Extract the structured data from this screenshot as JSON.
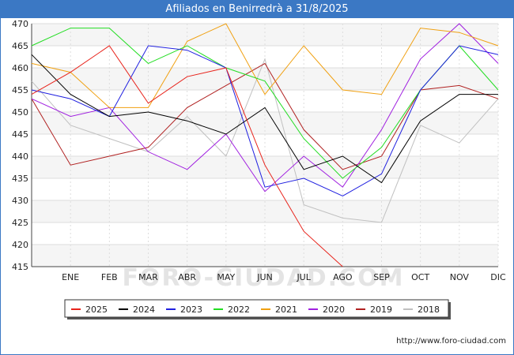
{
  "title": "Afiliados en Benirredrà a 31/8/2025",
  "source": "http://www.foro-ciudad.com",
  "watermark": "FORO-CIUDAD.COM",
  "chart_data": {
    "type": "line",
    "title": "Afiliados en Benirredrà a 31/8/2025",
    "categories": [
      "",
      "ENE",
      "FEB",
      "MAR",
      "ABR",
      "MAY",
      "JUN",
      "JUL",
      "AGO",
      "SEP",
      "OCT",
      "NOV",
      "DIC"
    ],
    "ylim": [
      415,
      470
    ],
    "yticks": [
      415,
      420,
      425,
      430,
      435,
      440,
      445,
      450,
      455,
      460,
      465,
      470
    ],
    "grid": true,
    "legend_position": "bottom",
    "series": [
      {
        "name": "2025",
        "color": "#e8231b",
        "values": [
          454,
          459,
          465,
          452,
          458,
          460,
          438,
          423,
          415,
          null,
          null,
          null,
          null
        ]
      },
      {
        "name": "2024",
        "color": "#000000",
        "values": [
          463,
          454,
          449,
          450,
          448,
          445,
          451,
          437,
          440,
          434,
          448,
          454,
          454
        ]
      },
      {
        "name": "2023",
        "color": "#1f1fe0",
        "values": [
          455,
          453,
          449,
          465,
          464,
          460,
          433,
          435,
          431,
          436,
          455,
          465,
          463
        ]
      },
      {
        "name": "2022",
        "color": "#22dd22",
        "values": [
          465,
          469,
          469,
          461,
          465,
          460,
          457,
          444,
          435,
          442,
          455,
          465,
          455
        ]
      },
      {
        "name": "2021",
        "color": "#f0a010",
        "values": [
          461,
          459,
          451,
          451,
          466,
          470,
          454,
          465,
          455,
          454,
          469,
          468,
          465
        ]
      },
      {
        "name": "2020",
        "color": "#a020e0",
        "values": [
          453,
          449,
          451,
          441,
          437,
          445,
          432,
          440,
          433,
          446,
          462,
          470,
          461
        ]
      },
      {
        "name": "2019",
        "color": "#b02020",
        "values": [
          453,
          438,
          440,
          442,
          451,
          456,
          461,
          446,
          437,
          440,
          455,
          456,
          453
        ]
      },
      {
        "name": "2018",
        "color": "#c0c0c0",
        "values": [
          457,
          447,
          444,
          441,
          449,
          440,
          462,
          429,
          426,
          425,
          447,
          443,
          453
        ]
      }
    ]
  }
}
